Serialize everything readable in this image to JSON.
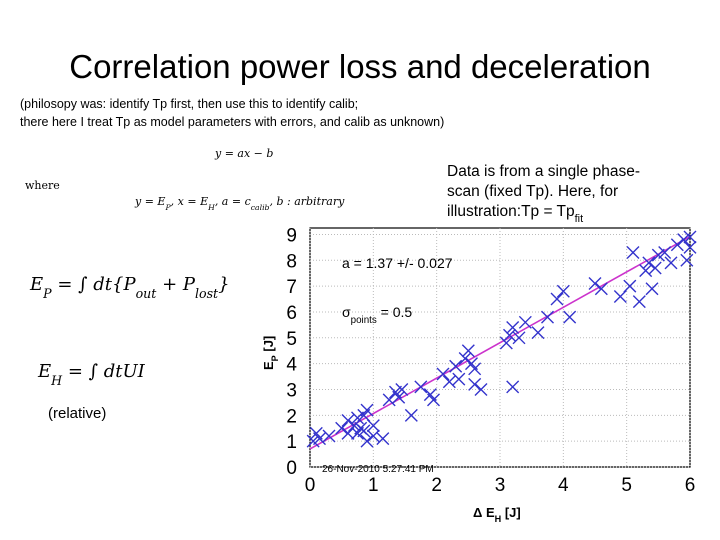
{
  "title": "Correlation power loss and deceleration",
  "subtitle": [
    "(philosopy was: identify Tp first, then use this to identify calib;",
    "there here I treat Tp as model parameters with errors, and calib as unknown)"
  ],
  "equations": {
    "model": [
      "y = ax − b"
    ],
    "where": "where",
    "definitions": [
      "y = E",
      {
        "sub": "P"
      },
      ", x = E",
      {
        "sub": "H"
      },
      ", a = c",
      {
        "sub": "calib"
      },
      ", b : arbitrary"
    ],
    "ep": [
      "E",
      {
        "sub": "P"
      },
      " = ∫ dt{P",
      {
        "sub": "out"
      },
      " + P",
      {
        "sub": "lost"
      },
      "}"
    ],
    "eh": [
      "E",
      {
        "sub": "H"
      },
      " = ∫ dtUI"
    ],
    "relative": "(relative)"
  },
  "note": [
    [
      "Data is from a single phase-"
    ],
    [
      "scan (fixed Tp). Here, for"
    ],
    [
      "illustration:Tp = Tp",
      {
        "sub": "fit"
      }
    ]
  ],
  "chart_data": {
    "type": "scatter",
    "xlabel": [
      "Δ E",
      {
        "sub": "H"
      },
      " [J]"
    ],
    "ylabel": [
      "E",
      {
        "sub": "P"
      },
      " [J]"
    ],
    "annotations": [
      [
        "a = 1.37 +/- 0.027"
      ],
      [
        "σ",
        {
          "sub": "points"
        },
        " = 0.5"
      ]
    ],
    "timestamp": "26-Nov-2010 5:27:41 PM",
    "xlim": [
      0,
      6
    ],
    "ylim": [
      0,
      9.25
    ],
    "xticks": [
      0,
      1,
      2,
      3,
      4,
      5,
      6
    ],
    "yticks": [
      0,
      1,
      2,
      3,
      4,
      5,
      6,
      7,
      8,
      9
    ],
    "grid": true,
    "color": "#3333cc",
    "x": [
      0.05,
      0.1,
      0.15,
      0.3,
      0.5,
      0.6,
      0.6,
      0.7,
      0.75,
      0.75,
      0.8,
      0.85,
      0.9,
      0.9,
      1.0,
      1.15,
      1.25,
      1.35,
      1.4,
      1.45,
      1.6,
      1.75,
      1.9,
      1.95,
      2.1,
      2.2,
      2.3,
      2.35,
      2.45,
      2.5,
      2.55,
      2.6,
      2.6,
      2.7,
      3.1,
      3.15,
      3.2,
      3.2,
      3.3,
      3.4,
      3.6,
      3.75,
      3.9,
      4.0,
      4.1,
      4.5,
      4.6,
      4.9,
      5.05,
      5.1,
      5.2,
      5.3,
      5.35,
      5.45,
      5.5,
      5.6,
      5.7,
      5.8,
      5.9,
      5.95,
      6.0,
      6.0,
      5.4,
      1.0,
      0.85
    ],
    "y": [
      1.0,
      1.3,
      1.1,
      1.2,
      1.5,
      1.3,
      1.8,
      1.6,
      1.3,
      1.9,
      1.5,
      2.0,
      2.2,
      1.0,
      1.6,
      1.1,
      2.6,
      2.9,
      2.7,
      3.0,
      2.0,
      3.1,
      2.8,
      2.6,
      3.6,
      3.3,
      3.9,
      3.4,
      4.2,
      4.5,
      4.0,
      3.8,
      3.2,
      3.0,
      4.8,
      5.1,
      5.4,
      3.1,
      5.0,
      5.6,
      5.2,
      5.8,
      6.5,
      6.8,
      5.8,
      7.1,
      6.9,
      6.6,
      7.0,
      8.3,
      6.4,
      7.6,
      7.9,
      7.7,
      8.2,
      8.3,
      7.9,
      8.6,
      8.8,
      8.0,
      8.9,
      8.5,
      6.9,
      1.2,
      1.4
    ],
    "fit_line": {
      "x": [
        0,
        6
      ],
      "y": [
        0.7,
        8.92
      ],
      "color": "#cc33cc"
    }
  }
}
